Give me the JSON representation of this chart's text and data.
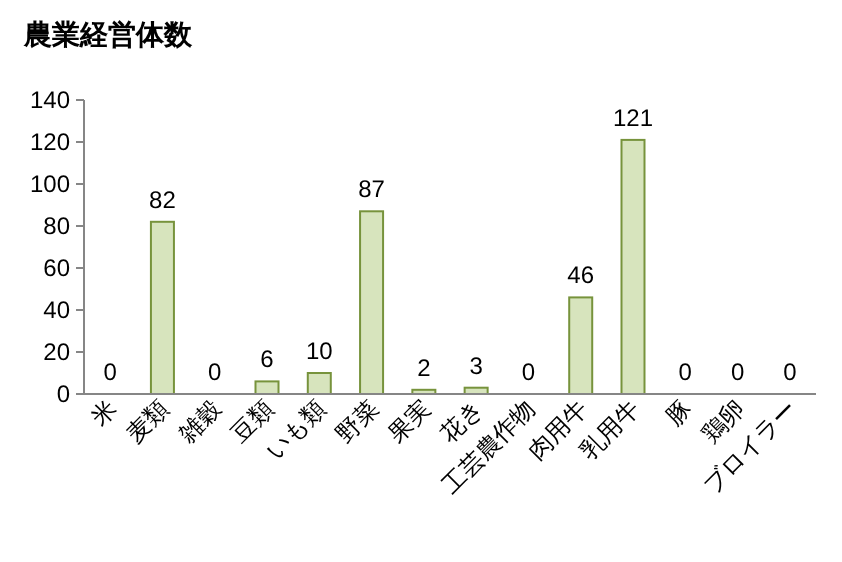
{
  "chart_data": {
    "type": "bar",
    "title": "農業経営体数",
    "categories": [
      "米",
      "麦類",
      "雑穀",
      "豆類",
      "いも類",
      "野菜",
      "果実",
      "花き",
      "工芸農作物",
      "肉用牛",
      "乳用牛",
      "豚",
      "鶏卵",
      "ブロイラー"
    ],
    "values": [
      0,
      82,
      0,
      6,
      10,
      87,
      2,
      3,
      0,
      46,
      121,
      0,
      0,
      0
    ],
    "color": "#d7e4bd",
    "ylim": [
      0,
      140
    ],
    "yticks": [
      0,
      20,
      40,
      60,
      80,
      100,
      120,
      140
    ],
    "data_labels": true
  }
}
